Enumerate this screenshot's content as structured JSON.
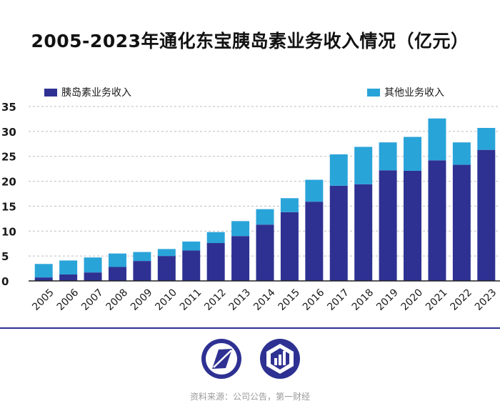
{
  "title": "2005-2023年通化东宝胰岛素业务收入情况（亿元）",
  "source": "资料来源：公司公告，第一财经",
  "colors": {
    "insulin": "#2e3192",
    "other": "#29a4d9",
    "grid": "#bdbdbd",
    "divider": "#2e3192"
  },
  "logos": {
    "left": "first-financial-logo",
    "right": "data-news-logo"
  },
  "chart_data": {
    "type": "bar",
    "stacked": true,
    "title": "2005-2023年通化东宝胰岛素业务收入情况（亿元）",
    "xlabel": "",
    "ylabel": "",
    "categories": [
      "2005",
      "2006",
      "2007",
      "2008",
      "2009",
      "2010",
      "2011",
      "2012",
      "2013",
      "2014",
      "2015",
      "2016",
      "2017",
      "2018",
      "2019",
      "2020",
      "2021",
      "2022",
      "2023"
    ],
    "series": [
      {
        "name": "胰岛素业务收入",
        "values": [
          0.7,
          1.3,
          1.7,
          2.8,
          4.0,
          5.0,
          6.1,
          7.6,
          9.0,
          11.3,
          13.8,
          15.9,
          19.1,
          19.4,
          22.2,
          22.1,
          24.2,
          23.3,
          26.3
        ]
      },
      {
        "name": "其他业务收入",
        "values": [
          2.7,
          2.8,
          3.0,
          2.7,
          1.8,
          1.4,
          1.8,
          2.2,
          3.0,
          3.1,
          2.8,
          4.4,
          6.3,
          7.5,
          5.6,
          6.8,
          8.4,
          4.5,
          4.4
        ]
      }
    ],
    "ylim": [
      0,
      35
    ],
    "yticks": [
      0,
      5,
      10,
      15,
      20,
      25,
      30,
      35
    ],
    "grid": true,
    "legend": "top"
  }
}
